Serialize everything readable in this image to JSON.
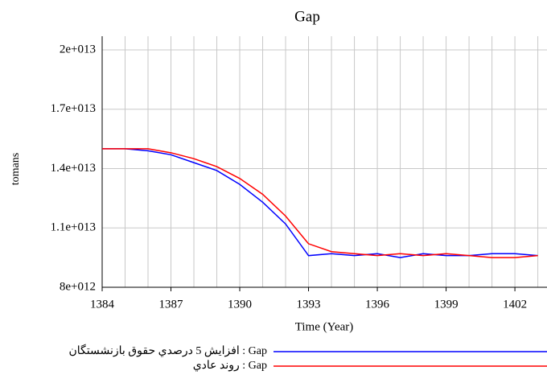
{
  "chart_data": {
    "type": "line",
    "title": "Gap",
    "ylabel": "tomans",
    "xlabel": "Time (Year)",
    "xlim": [
      1384,
      1403.4
    ],
    "ylim": [
      8000000000000,
      20000000000000
    ],
    "xticks": [
      1384,
      1387,
      1390,
      1393,
      1396,
      1399,
      1402
    ],
    "yticks": [
      {
        "value": 8000000000000,
        "label": "8e+012"
      },
      {
        "value": 11000000000000,
        "label": "1.1e+013"
      },
      {
        "value": 14000000000000,
        "label": "1.4e+013"
      },
      {
        "value": 17000000000000,
        "label": "1.7e+013"
      },
      {
        "value": 20000000000000,
        "label": "2e+013"
      }
    ],
    "grid": true,
    "x": [
      1384,
      1385,
      1386,
      1387,
      1388,
      1389,
      1390,
      1391,
      1392,
      1393,
      1394,
      1395,
      1396,
      1397,
      1398,
      1399,
      1400,
      1401,
      1402,
      1403
    ],
    "series": [
      {
        "name": "افزايش 5 درصدي حقوق بازنشستگان : Gap",
        "color": "#0000ff",
        "values": [
          15000000000000,
          15000000000000,
          14900000000000,
          14700000000000,
          14300000000000,
          13900000000000,
          13200000000000,
          12300000000000,
          11200000000000,
          9600000000000,
          9700000000000,
          9600000000000,
          9700000000000,
          9500000000000,
          9700000000000,
          9600000000000,
          9600000000000,
          9700000000000,
          9700000000000,
          9600000000000
        ]
      },
      {
        "name": "روند عادي : Gap",
        "color": "#ff0000",
        "values": [
          15000000000000,
          15000000000000,
          15000000000000,
          14800000000000,
          14500000000000,
          14100000000000,
          13500000000000,
          12700000000000,
          11600000000000,
          10200000000000,
          9800000000000,
          9700000000000,
          9600000000000,
          9700000000000,
          9600000000000,
          9700000000000,
          9600000000000,
          9500000000000,
          9500000000000,
          9600000000000
        ]
      }
    ]
  }
}
